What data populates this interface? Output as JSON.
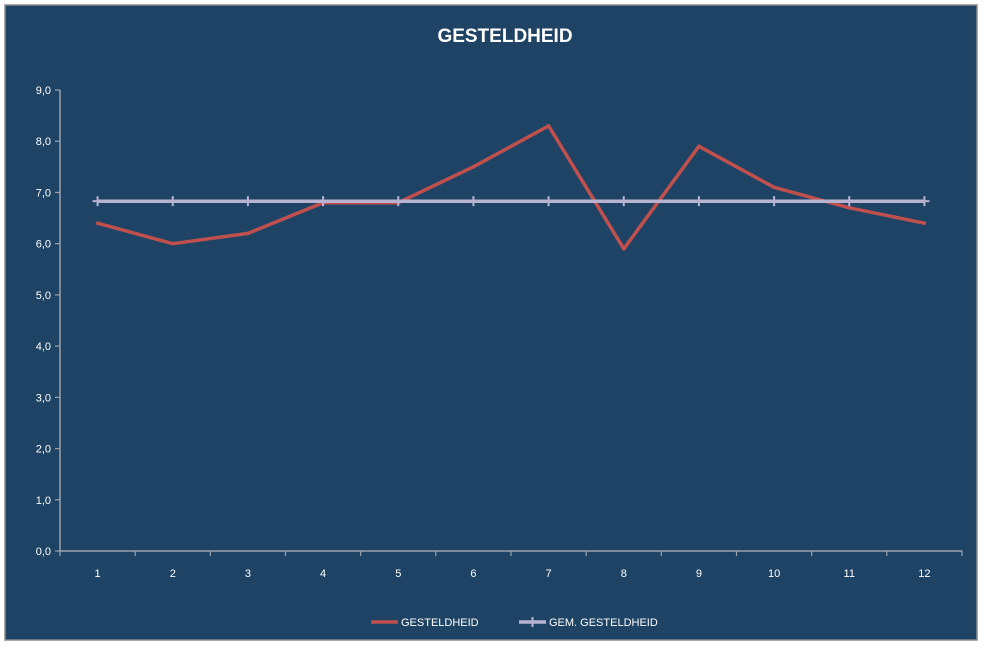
{
  "chart_data": {
    "type": "line",
    "title": "GESTELDHEID",
    "xlabel": "",
    "ylabel": "",
    "categories": [
      "1",
      "2",
      "3",
      "4",
      "5",
      "6",
      "7",
      "8",
      "9",
      "10",
      "11",
      "12"
    ],
    "y_tick_labels": [
      "0,0",
      "1,0",
      "2,0",
      "3,0",
      "4,0",
      "5,0",
      "6,0",
      "7,0",
      "8,0",
      "9,0"
    ],
    "ylim": [
      0,
      9
    ],
    "ytick_step": 1,
    "grid": false,
    "legend_position": "bottom",
    "series": [
      {
        "name": "GESTELDHEID",
        "color": "#c0504d",
        "marker": "none",
        "values": [
          6.4,
          6.0,
          6.2,
          6.8,
          6.8,
          7.5,
          8.3,
          5.9,
          7.9,
          7.1,
          6.7,
          6.4
        ]
      },
      {
        "name": "GEM. GESTELDHEID",
        "color": "#b8b3d1",
        "marker": "plus",
        "values": [
          6.83,
          6.83,
          6.83,
          6.83,
          6.83,
          6.83,
          6.83,
          6.83,
          6.83,
          6.83,
          6.83,
          6.83
        ]
      }
    ]
  },
  "colors": {
    "background": "#1f4364",
    "frame_border": "#8a8a8a",
    "axis": "#9aa3ad",
    "text": "#ffffff"
  }
}
